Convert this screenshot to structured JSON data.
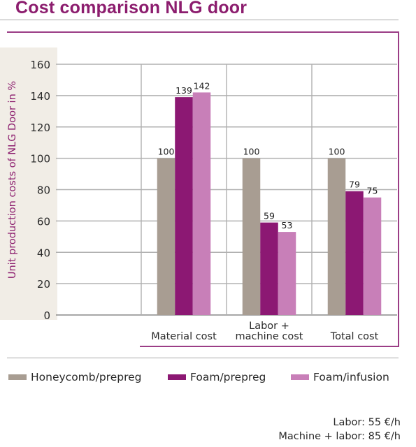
{
  "title": "Cost comparison NLG door",
  "colors": {
    "title": "#8c1d6e",
    "ylabel": "#8c1d6e",
    "frame": "#9b3d86",
    "ylabel_band": "#f1ede6",
    "grid": "#b0b0b0"
  },
  "chart_data": {
    "type": "bar",
    "categories": [
      "",
      "Material cost",
      "Labor +\nmachine cost",
      "Total cost"
    ],
    "series": [
      {
        "name": "Honeycomb/prepreg",
        "color": "#a89d92",
        "values": [
          null,
          100,
          100,
          100
        ]
      },
      {
        "name": "Foam/prepreg",
        "color": "#8c1873",
        "values": [
          null,
          139,
          59,
          79
        ]
      },
      {
        "name": "Foam/infusion",
        "color": "#c87fb8",
        "values": [
          null,
          142,
          53,
          75
        ]
      }
    ],
    "ylabel": "Unit production costs of NLG Door in %",
    "xlabel": "",
    "ylim": [
      0,
      160
    ],
    "yticks": [
      0,
      20,
      40,
      60,
      80,
      100,
      120,
      140,
      160
    ],
    "grid": true,
    "legend_position": "bottom"
  },
  "notes": [
    {
      "label": "Labor:",
      "value": "55 €/h"
    },
    {
      "label": "Machine + labor:",
      "value": "85 €/h"
    }
  ]
}
